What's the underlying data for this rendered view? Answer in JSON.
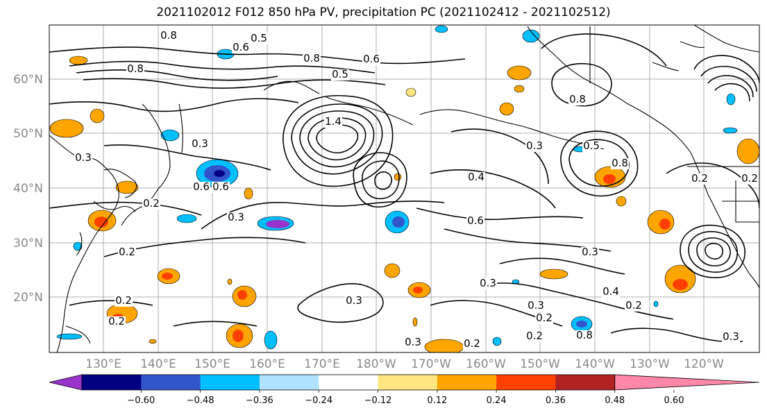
{
  "title": "2021102012 F012 850 hPa PV, precipitation PC (2021102412 - 2021102512)",
  "map": {
    "lat_labels": [
      "20°N",
      "30°N",
      "40°N",
      "50°N",
      "60°N"
    ],
    "lon_labels": [
      "130°E",
      "140°E",
      "150°E",
      "160°E",
      "170°E",
      "180°W",
      "170°W",
      "160°W",
      "150°W",
      "140°W",
      "130°W",
      "120°W"
    ],
    "contour_labels": [
      "0.8",
      "0.5",
      "0.6",
      "0.8",
      "0.8",
      "0.5",
      "0.6",
      "0.3",
      "0.3",
      "0.6",
      "1.4",
      "0.3",
      "0.2",
      "0.4",
      "0.6",
      "0.3",
      "0.2",
      "0.3",
      "0.4",
      "0.2",
      "0.2",
      "0.3",
      "0.2",
      "0.2",
      "0.3",
      "0.8",
      "0.5",
      "0.8",
      "0.2",
      "0.3",
      "0.2",
      "0.8",
      "0.3",
      "0.2",
      "0.6",
      "0.3",
      "0.2"
    ]
  },
  "colorbar": {
    "ticks": [
      "−0.60",
      "−0.48",
      "−0.36",
      "−0.24",
      "−0.12",
      "0.12",
      "0.24",
      "0.36",
      "0.48",
      "0.60"
    ],
    "colors": [
      "#9933cc",
      "#000080",
      "#3355cc",
      "#00bfff",
      "#b0e2ff",
      "#ffffff",
      "#ffe680",
      "#ffa500",
      "#ff4000",
      "#b22222",
      "#ff88aa"
    ]
  }
}
